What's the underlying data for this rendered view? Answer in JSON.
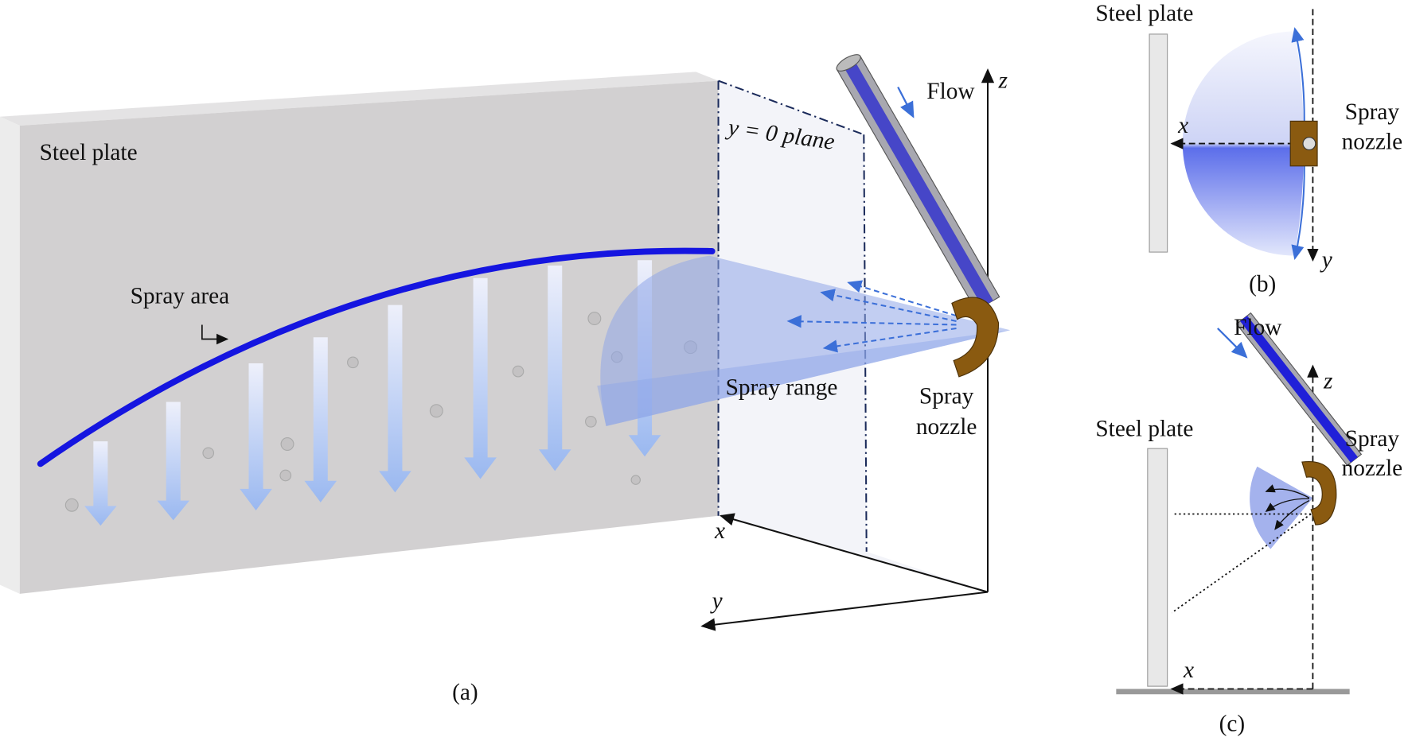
{
  "panel_a": {
    "caption": "(a)",
    "plate_label": "Steel plate",
    "spray_area": "Spray area",
    "plane_label": "y = 0 plane",
    "flow": "Flow",
    "axes": {
      "x": "x",
      "y": "y",
      "z": "z"
    },
    "spray_range": "Spray range",
    "nozzle": [
      "Spray",
      "nozzle"
    ]
  },
  "panel_b": {
    "caption": "(b)",
    "plate_label": "Steel plate",
    "axes": {
      "x": "x",
      "y": "y"
    },
    "nozzle": [
      "Spray",
      "nozzle"
    ]
  },
  "panel_c": {
    "caption": "(c)",
    "plate_label": "Steel plate",
    "flow": "Flow",
    "axes": {
      "x": "x",
      "z": "z"
    },
    "nozzle": [
      "Spray",
      "nozzle"
    ]
  }
}
